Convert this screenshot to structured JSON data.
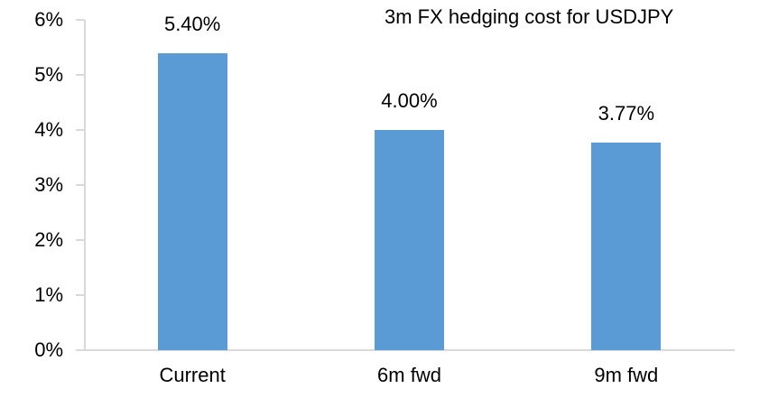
{
  "chart_data": {
    "type": "bar",
    "title": "3m FX hedging cost for USDJPY",
    "categories": [
      "Current",
      "6m fwd",
      "9m fwd"
    ],
    "values": [
      5.4,
      4.0,
      3.77
    ],
    "data_labels": [
      "5.40%",
      "4.00%",
      "3.77%"
    ],
    "y_ticks": [
      "6%",
      "5%",
      "4%",
      "3%",
      "2%",
      "1%",
      "0%"
    ],
    "ylim": [
      0,
      6
    ],
    "xlabel": "",
    "ylabel": "",
    "grid": false,
    "legend": "none",
    "colors": {
      "bar": "#5b9bd5",
      "axis": "#d9d9d9",
      "text": "#000000",
      "background": "#ffffff"
    }
  }
}
